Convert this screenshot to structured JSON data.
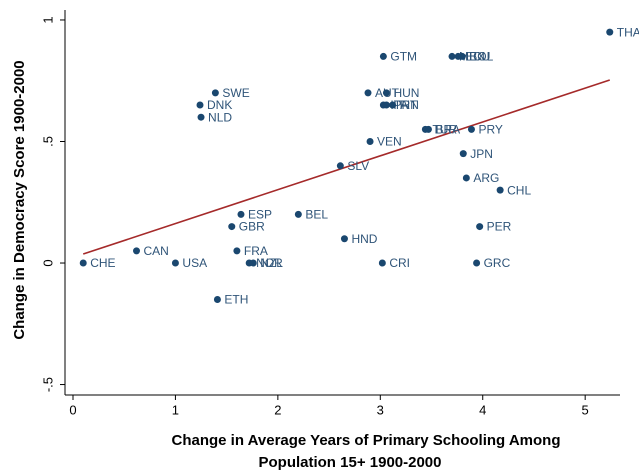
{
  "chart_data": {
    "type": "scatter",
    "y_label": "Change in Democracy Score 1900-2000",
    "x_label": [
      "Change in Average Years of Primary Schooling Among",
      "Population 15+ 1900-2000"
    ],
    "xlim": [
      -0.078,
      5.34
    ],
    "ylim": [
      -0.543,
      1.041
    ],
    "xticks": [
      0,
      1,
      2,
      3,
      4,
      5
    ],
    "yticks": [
      {
        "value": -0.5,
        "label": "-.5"
      },
      0,
      {
        "value": 0.5,
        "label": ".5"
      },
      1
    ],
    "series": [
      {
        "color": "#1a476f",
        "labels": [
          "CHE",
          "CAN",
          "USA",
          "SWE",
          "DNK",
          "NLD",
          "ETH",
          "ESP",
          "GBR",
          "FRA",
          "NOR",
          "NZL",
          "BEL",
          "HND",
          "SLV",
          "VEN",
          "AUT",
          "GTM",
          "CRI",
          "HUN",
          "ITA",
          "PRT",
          "FIN",
          "TUR",
          "BRA",
          "PRY",
          "JPN",
          "ARG",
          "CHL",
          "PER",
          "GRC",
          "MEX",
          "ECU",
          "BOL",
          "THA"
        ],
        "x": [
          0.1,
          0.62,
          1.0,
          1.39,
          1.24,
          1.25,
          1.41,
          1.64,
          1.55,
          1.6,
          1.72,
          1.76,
          2.2,
          2.65,
          2.61,
          2.9,
          2.88,
          3.03,
          3.02,
          3.06,
          3.03,
          3.06,
          3.12,
          3.44,
          3.47,
          3.89,
          3.81,
          3.84,
          4.17,
          3.97,
          3.94,
          3.7,
          3.76,
          3.8,
          5.24
        ],
        "values": [
          0,
          0.05,
          0,
          0.7,
          0.65,
          0.6,
          -0.15,
          0.2,
          0.15,
          0.05,
          0,
          0,
          0.2,
          0.1,
          0.4,
          0.5,
          0.7,
          0.85,
          0,
          0.7,
          0.65,
          0.65,
          0.65,
          0.55,
          0.55,
          0.55,
          0.45,
          0.35,
          0.3,
          0.15,
          0,
          0.85,
          0.85,
          0.85,
          0.95
        ]
      }
    ],
    "fit": {
      "color": "#a52a2a",
      "x": [
        0.1,
        5.24
      ],
      "values": [
        0.037,
        0.753
      ]
    }
  }
}
